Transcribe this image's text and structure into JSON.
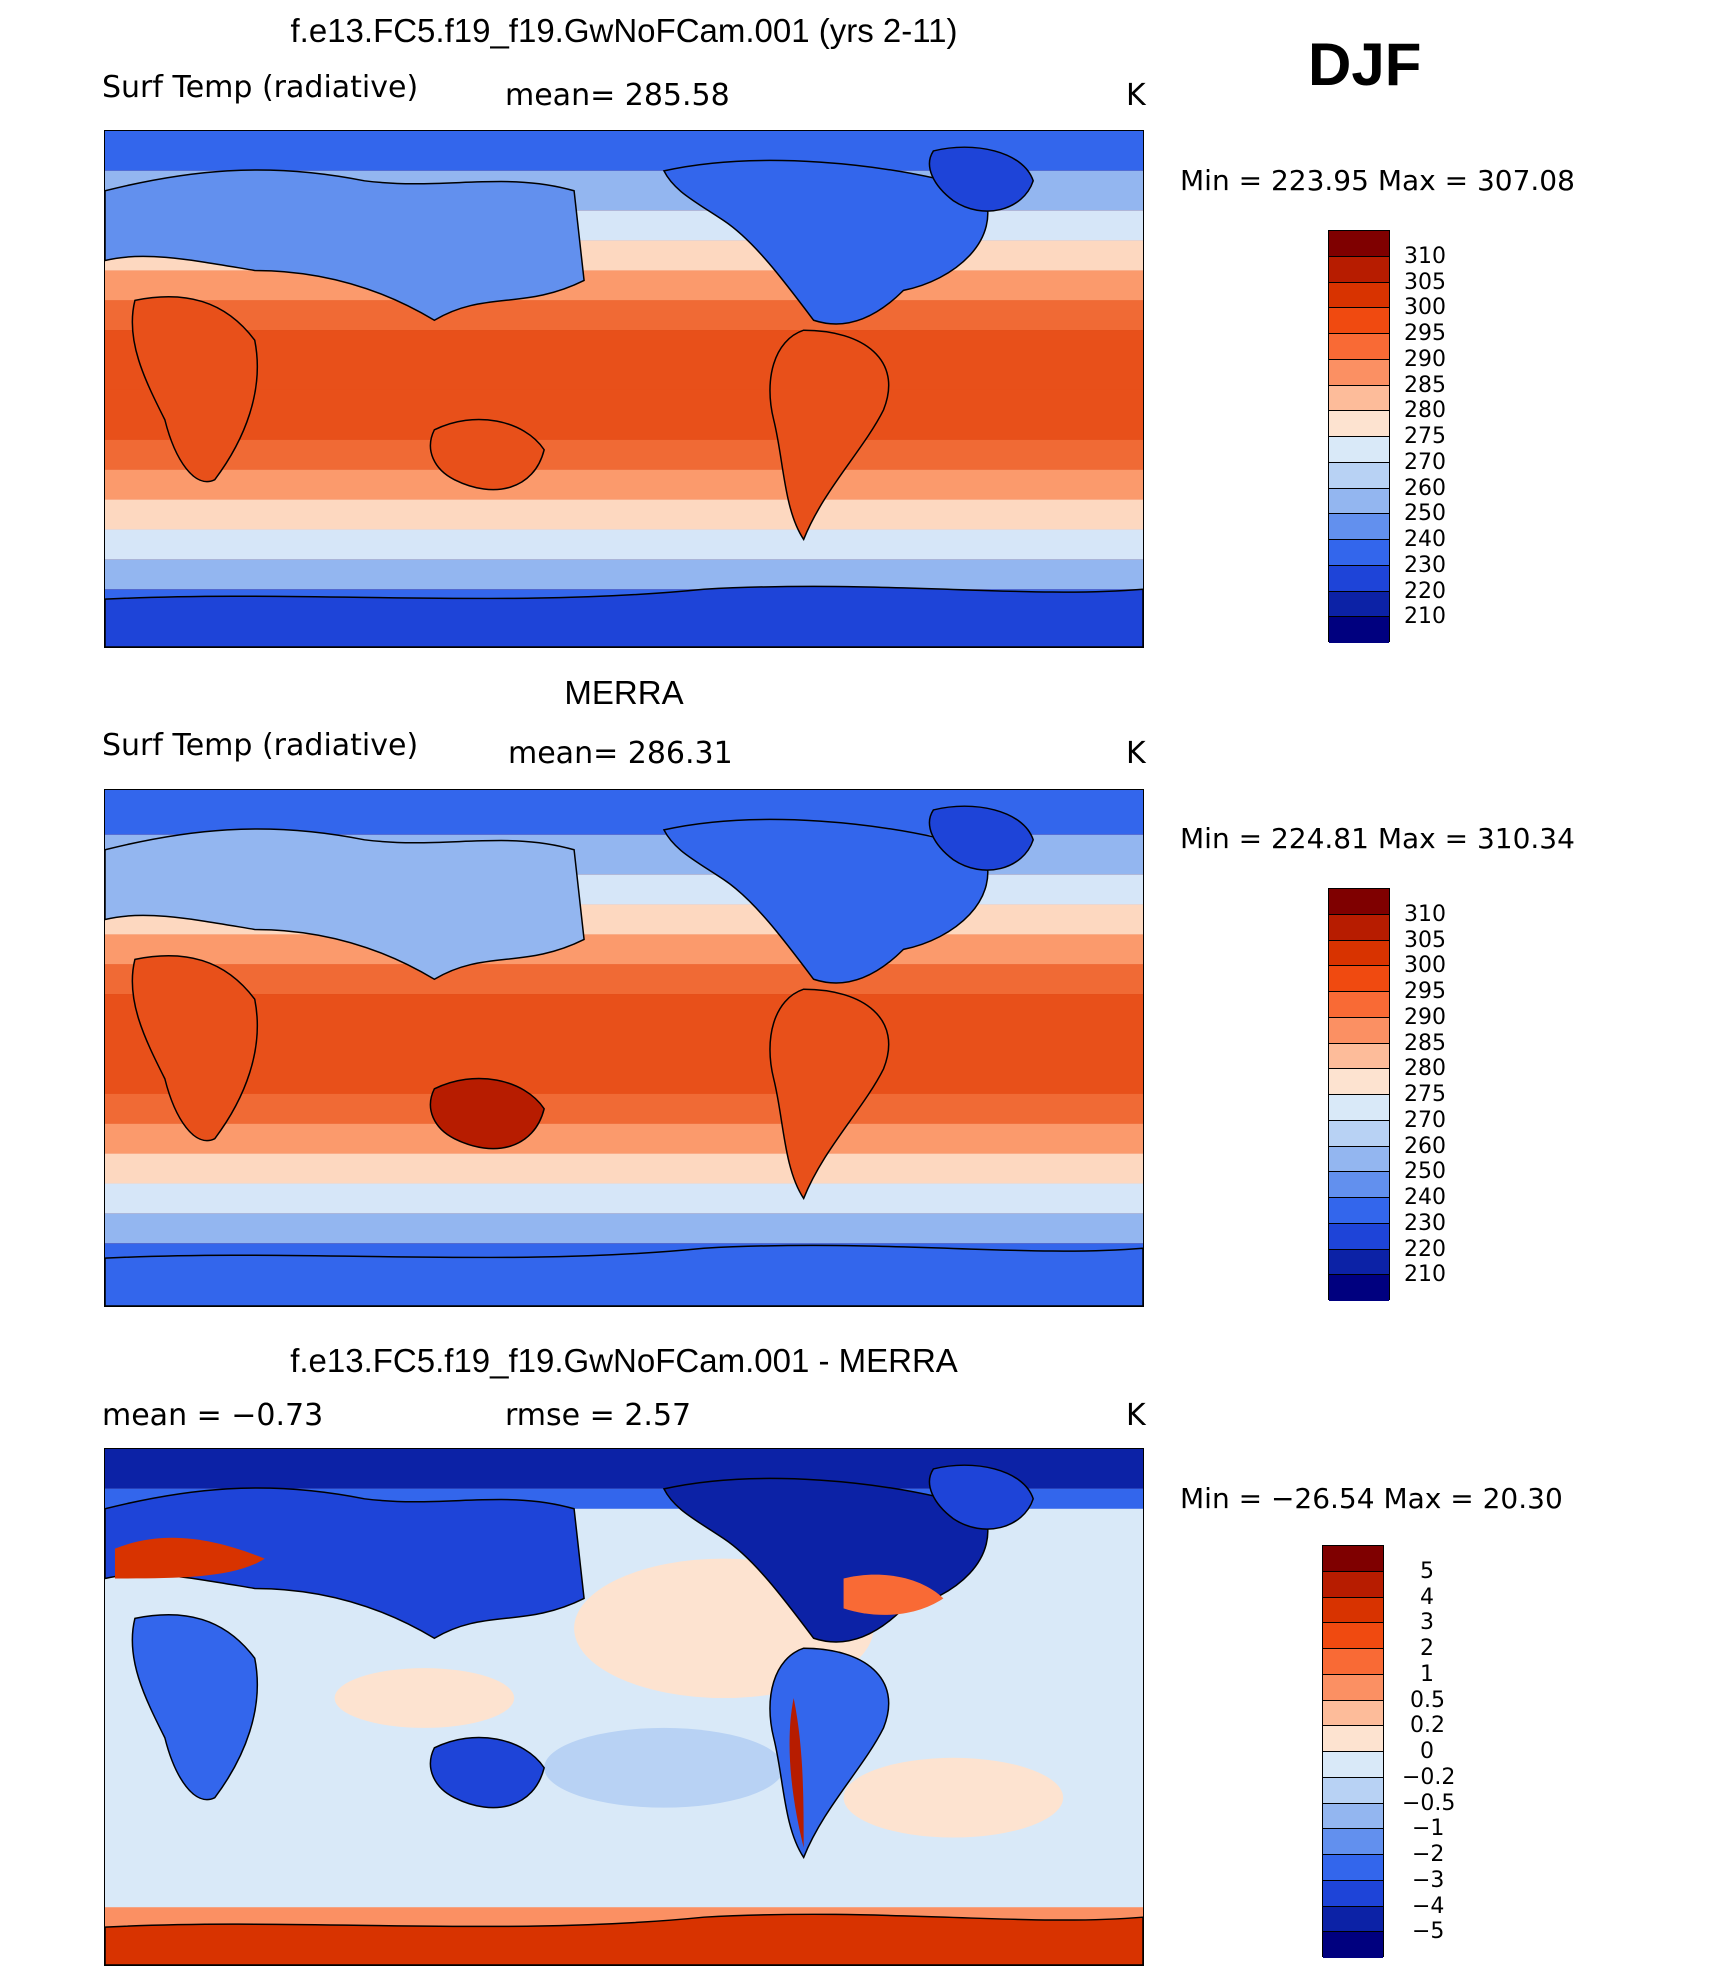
{
  "season": "DJF",
  "panels": [
    {
      "title": "f.e13.FC5.f19_f19.GwNoFCam.001 (yrs 2-11)",
      "left_label": "Surf Temp (radiative)",
      "mid_label": "mean=  285.58",
      "units": "K",
      "minmax": "Min  =  223.95  Max  =  307.08",
      "colorbar": {
        "labels": [
          "310",
          "305",
          "300",
          "295",
          "290",
          "285",
          "280",
          "275",
          "270",
          "260",
          "250",
          "240",
          "230",
          "220",
          "210"
        ],
        "colors": [
          "#7f0000",
          "#b71c00",
          "#d83300",
          "#f04a10",
          "#f96a35",
          "#fb9063",
          "#fdbc9a",
          "#fde3d0",
          "#d9e9f8",
          "#b8d2f4",
          "#93b6f0",
          "#6290ee",
          "#3366ec",
          "#1e44d8",
          "#0c22a6",
          "#00007f"
        ]
      }
    },
    {
      "title": "MERRA",
      "left_label": "Surf Temp (radiative)",
      "mid_label": "mean=  286.31",
      "units": "K",
      "minmax": "Min  =  224.81  Max  =  310.34",
      "colorbar": {
        "labels": [
          "310",
          "305",
          "300",
          "295",
          "290",
          "285",
          "280",
          "275",
          "270",
          "260",
          "250",
          "240",
          "230",
          "220",
          "210"
        ],
        "colors": [
          "#7f0000",
          "#b71c00",
          "#d83300",
          "#f04a10",
          "#f96a35",
          "#fb9063",
          "#fdbc9a",
          "#fde3d0",
          "#d9e9f8",
          "#b8d2f4",
          "#93b6f0",
          "#6290ee",
          "#3366ec",
          "#1e44d8",
          "#0c22a6",
          "#00007f"
        ]
      }
    },
    {
      "title": "f.e13.FC5.f19_f19.GwNoFCam.001 - MERRA",
      "left_label": "mean  =     −0.73",
      "mid_label": "rmse  =      2.57",
      "units": "K",
      "minmax": "Min  =  −26.54  Max  =    20.30",
      "colorbar": {
        "labels": [
          "5",
          "4",
          "3",
          "2",
          "1",
          "0.5",
          "0.2",
          "0",
          "−0.2",
          "−0.5",
          "−1",
          "−2",
          "−3",
          "−4",
          "−5"
        ],
        "colors": [
          "#7f0000",
          "#b71c00",
          "#d83300",
          "#f04a10",
          "#f96a35",
          "#fb9063",
          "#fdbc9a",
          "#fde3d0",
          "#d9e9f8",
          "#b8d2f4",
          "#93b6f0",
          "#6290ee",
          "#3366ec",
          "#1e44d8",
          "#0c22a6",
          "#00007f"
        ]
      }
    }
  ],
  "palette": {
    "ocean_warm": "#e8501a",
    "ocean_hot": "#d93c0c",
    "mid": "#fb9a6c",
    "cool": "#fdd8c0",
    "cold": "#d6e6f8",
    "colder": "#93b6f0",
    "polar": "#3366ec",
    "very_polar": "#1e44d8",
    "deep": "#0c22a6"
  }
}
